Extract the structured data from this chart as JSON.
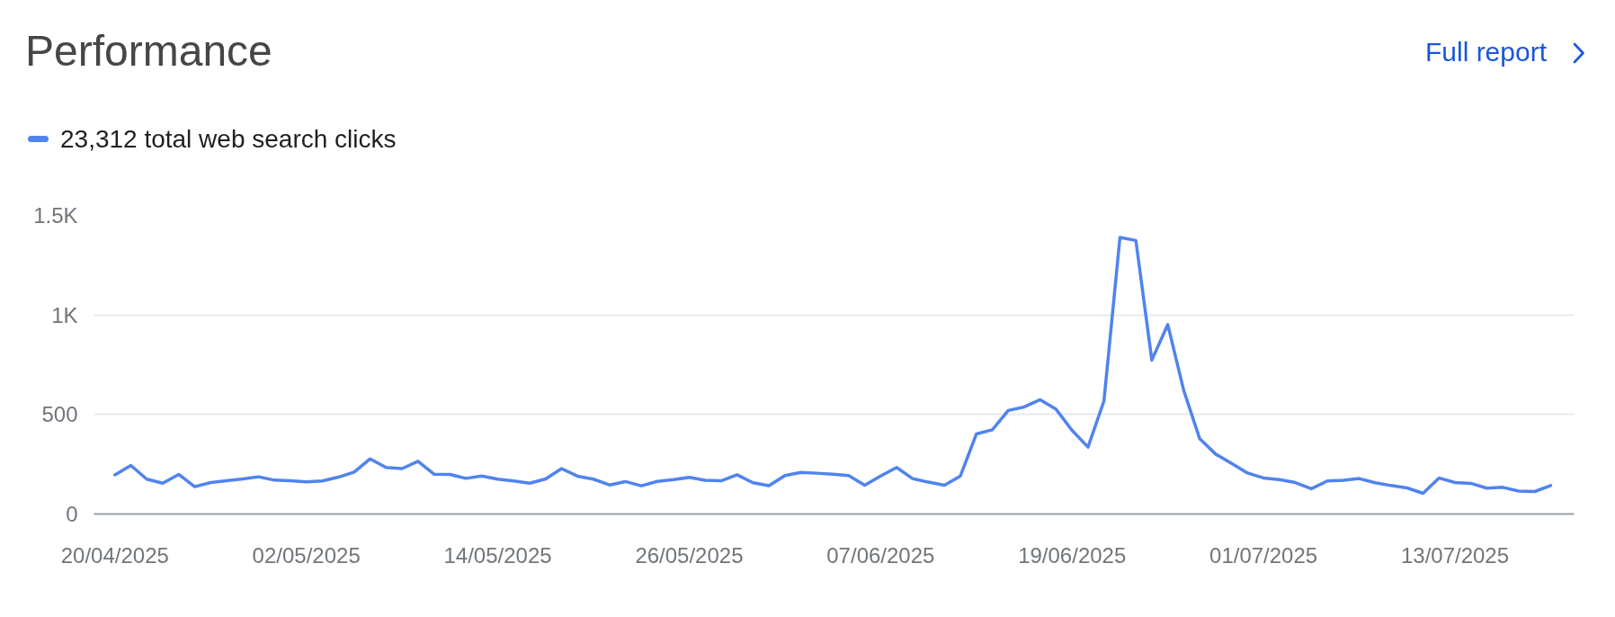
{
  "chart_data": {
    "type": "line",
    "title": "Performance",
    "annotations": [
      "Full report"
    ],
    "x": [
      "2025-04-20",
      "2025-04-21",
      "2025-04-22",
      "2025-04-23",
      "2025-04-24",
      "2025-04-25",
      "2025-04-26",
      "2025-04-27",
      "2025-04-28",
      "2025-04-29",
      "2025-04-30",
      "2025-05-01",
      "2025-05-02",
      "2025-05-03",
      "2025-05-04",
      "2025-05-05",
      "2025-05-06",
      "2025-05-07",
      "2025-05-08",
      "2025-05-09",
      "2025-05-10",
      "2025-05-11",
      "2025-05-12",
      "2025-05-13",
      "2025-05-14",
      "2025-05-15",
      "2025-05-16",
      "2025-05-17",
      "2025-05-18",
      "2025-05-19",
      "2025-05-20",
      "2025-05-21",
      "2025-05-22",
      "2025-05-23",
      "2025-05-24",
      "2025-05-25",
      "2025-05-26",
      "2025-05-27",
      "2025-05-28",
      "2025-05-29",
      "2025-05-30",
      "2025-05-31",
      "2025-06-01",
      "2025-06-02",
      "2025-06-03",
      "2025-06-04",
      "2025-06-05",
      "2025-06-06",
      "2025-06-07",
      "2025-06-08",
      "2025-06-09",
      "2025-06-10",
      "2025-06-11",
      "2025-06-12",
      "2025-06-13",
      "2025-06-14",
      "2025-06-15",
      "2025-06-16",
      "2025-06-17",
      "2025-06-18",
      "2025-06-19",
      "2025-06-20",
      "2025-06-21",
      "2025-06-22",
      "2025-06-23",
      "2025-06-24",
      "2025-06-25",
      "2025-06-26",
      "2025-06-27",
      "2025-06-28",
      "2025-06-29",
      "2025-06-30",
      "2025-07-01",
      "2025-07-02",
      "2025-07-03",
      "2025-07-04",
      "2025-07-05",
      "2025-07-06",
      "2025-07-07",
      "2025-07-08",
      "2025-07-09",
      "2025-07-10",
      "2025-07-11",
      "2025-07-12",
      "2025-07-13",
      "2025-07-14",
      "2025-07-15",
      "2025-07-16",
      "2025-07-17",
      "2025-07-18",
      "2025-07-19"
    ],
    "series": [
      {
        "name": "23,312 total web search clicks",
        "color": "#5083ee",
        "values": [
          197,
          244,
          175,
          155,
          199,
          137,
          158,
          167,
          176,
          187,
          170,
          167,
          161,
          166,
          185,
          211,
          277,
          234,
          228,
          265,
          200,
          199,
          179,
          191,
          175,
          166,
          155,
          176,
          228,
          190,
          175,
          146,
          163,
          142,
          164,
          173,
          184,
          169,
          167,
          197,
          157,
          142,
          193,
          209,
          205,
          200,
          193,
          145,
          191,
          234,
          178,
          160,
          145,
          191,
          402,
          423,
          520,
          538,
          574,
          526,
          420,
          336,
          568,
          1389,
          1374,
          773,
          952,
          621,
          378,
          301,
          254,
          206,
          181,
          173,
          158,
          127,
          166,
          169,
          178,
          157,
          143,
          131,
          104,
          181,
          158,
          154,
          130,
          134,
          115,
          113,
          143
        ]
      }
    ],
    "xlim": [
      "2025-04-18T16:30",
      "2025-07-20T11:15"
    ],
    "xticks": [
      {
        "value": "2025-04-20",
        "label": "20/04/2025"
      },
      {
        "value": "2025-05-02",
        "label": "02/05/2025"
      },
      {
        "value": "2025-05-14",
        "label": "14/05/2025"
      },
      {
        "value": "2025-05-26",
        "label": "26/05/2025"
      },
      {
        "value": "2025-06-07",
        "label": "07/06/2025"
      },
      {
        "value": "2025-06-19",
        "label": "19/06/2025"
      },
      {
        "value": "2025-07-01",
        "label": "01/07/2025"
      },
      {
        "value": "2025-07-13",
        "label": "13/07/2025"
      }
    ],
    "ylim": [
      0,
      1500
    ],
    "yticks": [
      0,
      500,
      {
        "value": 1000,
        "label": "1K"
      },
      {
        "value": 1500,
        "label": "1.5K"
      }
    ],
    "grid": "y",
    "legend": "top left",
    "line_style": "solid"
  }
}
